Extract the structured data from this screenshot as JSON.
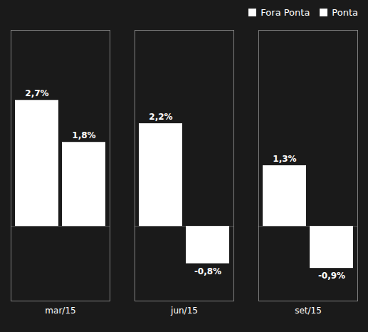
{
  "chart_data": {
    "type": "bar",
    "categories": [
      "mar/15",
      "jun/15",
      "set/15"
    ],
    "series": [
      {
        "name": "Fora Ponta",
        "color": "#ffffff",
        "values": [
          2.7,
          2.2,
          1.3
        ],
        "value_labels": [
          "2,7%",
          "2,2%",
          "1,3%"
        ]
      },
      {
        "name": "Ponta",
        "color": "#ffffff",
        "values": [
          1.8,
          -0.8,
          -0.9
        ],
        "value_labels": [
          "1,8%",
          "-0,8%",
          "-0,9%"
        ]
      }
    ],
    "ylim": [
      -1.6,
      4.2
    ],
    "yticks": [],
    "grid": false,
    "legend": "upper right",
    "data_labels": true,
    "tick_labels": "x"
  }
}
